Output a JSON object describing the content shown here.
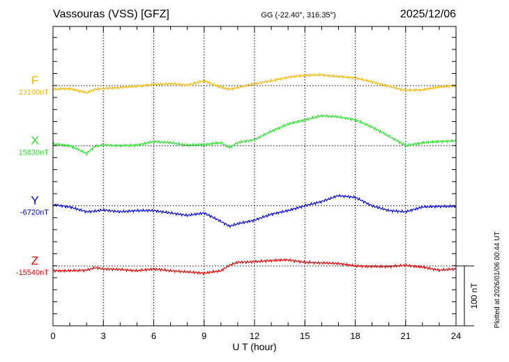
{
  "header": {
    "station": "Vassouras (VSS)  [GFZ]",
    "coords": "GG (-22.40°, 316.35°)",
    "date": "2025/12/06"
  },
  "footer": {
    "plotted": "Plotted at 2026/01/06 00:44 UT"
  },
  "chart_data": {
    "type": "line",
    "xlabel": "U T (hour)",
    "xlim": [
      0,
      24
    ],
    "xticks": [
      "0",
      "3",
      "6",
      "9",
      "12",
      "15",
      "18",
      "21",
      "24"
    ],
    "scale_bar": "100 nT",
    "grid": true,
    "x": [
      0,
      1,
      2,
      2.5,
      3,
      4,
      5,
      6,
      7,
      8,
      9,
      10,
      10.5,
      11,
      12,
      13,
      14,
      15,
      16,
      17,
      18,
      19,
      20,
      21,
      22,
      23,
      24
    ],
    "series": [
      {
        "name": "F",
        "baseline_label": "23190nT",
        "color": "#f5b400",
        "values": [
          -6,
          -5,
          -12,
          -6,
          -5,
          -3,
          -1,
          2,
          3,
          1,
          8,
          -3,
          -6,
          -3,
          3,
          8,
          14,
          17,
          18,
          15,
          13,
          6,
          -1,
          -8,
          -7,
          -2,
          0
        ]
      },
      {
        "name": "X",
        "baseline_label": "15830nT",
        "color": "#22e022",
        "values": [
          3,
          0,
          -13,
          -1,
          1,
          0,
          1,
          7,
          5,
          1,
          2,
          5,
          -3,
          5,
          10,
          24,
          36,
          43,
          50,
          48,
          43,
          31,
          16,
          0,
          5,
          7,
          8
        ]
      },
      {
        "name": "Y",
        "baseline_label": "-6720nT",
        "color": "#0000e0",
        "values": [
          2,
          -2,
          -10,
          -9,
          -7,
          -10,
          -8,
          -8,
          -12,
          -16,
          -12,
          -26,
          -34,
          -30,
          -24,
          -14,
          -8,
          0,
          7,
          17,
          14,
          0,
          -8,
          -10,
          -2,
          -1,
          -1
        ]
      },
      {
        "name": "Z",
        "baseline_label": "-15540nT",
        "color": "#e00000",
        "values": [
          -8,
          -8,
          -7,
          -3,
          -5,
          -6,
          -8,
          -5,
          -8,
          -10,
          -12,
          -8,
          1,
          6,
          7,
          9,
          10,
          6,
          5,
          4,
          0,
          -1,
          -1,
          1,
          -2,
          -7,
          -5
        ]
      }
    ]
  }
}
